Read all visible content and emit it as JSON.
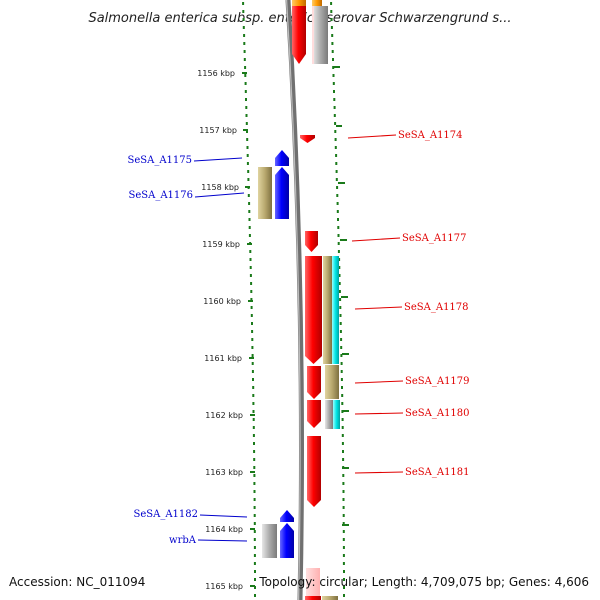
{
  "title": "Salmonella enterica subsp. enterica serovar Schwarzengrund s...",
  "footer": {
    "accession": "Accession: NC_011094",
    "topology": "Topology: circular; Length: 4,709,075 bp; Genes: 4,606"
  },
  "ticks": [
    "1156 kbp",
    "1157 kbp",
    "1158 kbp",
    "1159 kbp",
    "1160 kbp",
    "1161 kbp",
    "1162 kbp",
    "1163 kbp",
    "1164 kbp",
    "1165 kbp"
  ],
  "colors": {
    "forward": "#ff0000",
    "reverse": "#0000ff",
    "tan": "#b8a86e",
    "cyan": "#00e5e5",
    "gray": "#aaaaaa",
    "orange": "#ff9900",
    "backbone": "#808080",
    "tick": "#1a7a1a"
  },
  "labels": {
    "right": [
      "SeSA_A1174",
      "SeSA_A1177",
      "SeSA_A1178",
      "SeSA_A1179",
      "SeSA_A1180",
      "SeSA_A1181"
    ],
    "left": [
      "SeSA_A1175",
      "SeSA_A1176",
      "SeSA_A1182",
      "wrbA"
    ]
  }
}
